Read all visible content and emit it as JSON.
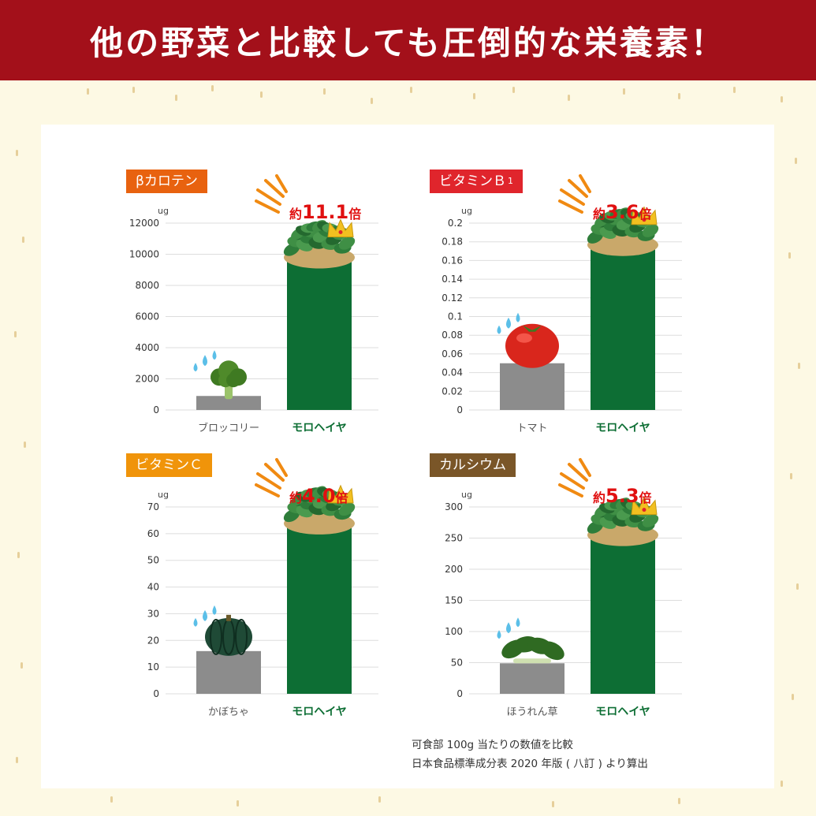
{
  "header": {
    "title": "他の野菜と比較しても圧倒的な栄養素！"
  },
  "colors": {
    "header_bg": "#a3101a",
    "moroheiya_bar": "#0d6e34",
    "comparison_bar": "#8c8c8c",
    "gridline": "#dddddd",
    "ratio_text": "#e01010",
    "moroheiya_label": "#0d6e34",
    "badge_beta_carotene": "#e8620f",
    "badge_vitamin_b1": "#e0252c",
    "badge_vitamin_c": "#f0940a",
    "badge_calcium": "#7a5628"
  },
  "chart_data": [
    {
      "type": "bar",
      "badge": "βカロテン",
      "unit": "ug",
      "categories": [
        "ブロッコリー",
        "モロヘイヤ"
      ],
      "values": [
        900,
        10000
      ],
      "ylim": [
        0,
        12000
      ],
      "yticks": [
        "0",
        "2000",
        "4000",
        "6000",
        "8000",
        "10000",
        "12000"
      ],
      "ratio_prefix": "約",
      "ratio_value": "11.1",
      "ratio_suffix": "倍",
      "comparison_icon": "broccoli-icon",
      "grid": true
    },
    {
      "type": "bar",
      "badge": "ビタミンＢ",
      "badge_sub": "1",
      "unit": "ug",
      "categories": [
        "トマト",
        "モロヘイヤ"
      ],
      "values": [
        0.05,
        0.18
      ],
      "ylim": [
        0,
        0.2
      ],
      "yticks": [
        "0",
        "0.02",
        "0.04",
        "0.06",
        "0.08",
        "0.1",
        "0.12",
        "0.14",
        "0.16",
        "0.18",
        "0.2"
      ],
      "ratio_prefix": "約",
      "ratio_value": "3.6",
      "ratio_suffix": "倍",
      "comparison_icon": "tomato-icon",
      "grid": true
    },
    {
      "type": "bar",
      "badge": "ビタミンＣ",
      "unit": "ug",
      "categories": [
        "かぼちゃ",
        "モロヘイヤ"
      ],
      "values": [
        16,
        65
      ],
      "ylim": [
        0,
        70
      ],
      "yticks": [
        "0",
        "10",
        "20",
        "30",
        "40",
        "50",
        "60",
        "70"
      ],
      "ratio_prefix": "約",
      "ratio_value": "4.0",
      "ratio_suffix": "倍",
      "comparison_icon": "pumpkin-icon",
      "grid": true
    },
    {
      "type": "bar",
      "badge": "カルシウム",
      "unit": "ug",
      "categories": [
        "ほうれん草",
        "モロヘイヤ"
      ],
      "values": [
        49,
        260
      ],
      "ylim": [
        0,
        300
      ],
      "yticks": [
        "0",
        "50",
        "100",
        "150",
        "200",
        "250",
        "300"
      ],
      "ratio_prefix": "約",
      "ratio_value": "5.3",
      "ratio_suffix": "倍",
      "comparison_icon": "spinach-icon",
      "grid": true
    }
  ],
  "footnote": {
    "line1": "可食部 100g 当たりの数値を比較",
    "line2": "日本食品標準成分表 2020 年版 ( 八訂 ) より算出"
  }
}
